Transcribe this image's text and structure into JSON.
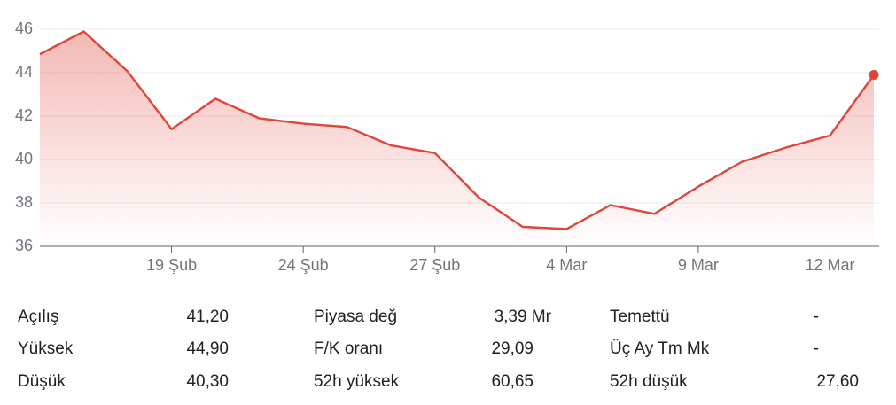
{
  "chart_data": {
    "type": "area",
    "x": [
      "",
      "",
      "",
      "19 Şub",
      "",
      "",
      "24 Şub",
      "",
      "",
      "27 Şub",
      "",
      "",
      "4 Mar",
      "",
      "",
      "9 Mar",
      "",
      "",
      "12 Mar",
      ""
    ],
    "values": [
      44.85,
      45.9,
      44.05,
      41.4,
      42.8,
      41.9,
      41.65,
      41.5,
      40.65,
      40.3,
      38.25,
      36.9,
      36.8,
      37.9,
      37.5,
      38.75,
      39.9,
      40.55,
      41.1,
      43.9
    ],
    "x_ticks": [
      "19 Şub",
      "24 Şub",
      "27 Şub",
      "4 Mar",
      "9 Mar",
      "12 Mar"
    ],
    "y_ticks": [
      36,
      38,
      40,
      42,
      44,
      46
    ],
    "ylim": [
      36,
      46.6
    ],
    "title": "",
    "xlabel": "",
    "ylabel": "",
    "grid": true,
    "line_color": "#e0453a"
  },
  "stats": [
    {
      "label": "Açılış",
      "value": "41,20"
    },
    {
      "label": "Yüksek",
      "value": "44,90"
    },
    {
      "label": "Düşük",
      "value": "40,30"
    },
    {
      "label": "Piyasa değ",
      "value": "3,39 Mr"
    },
    {
      "label": "F/K oranı",
      "value": "29,09"
    },
    {
      "label": "52h yüksek",
      "value": "60,65"
    },
    {
      "label": "Temettü",
      "value": "-"
    },
    {
      "label": "Üç Ay Tm Mk",
      "value": "-"
    },
    {
      "label": "52h düşük",
      "value": "27,60"
    }
  ]
}
